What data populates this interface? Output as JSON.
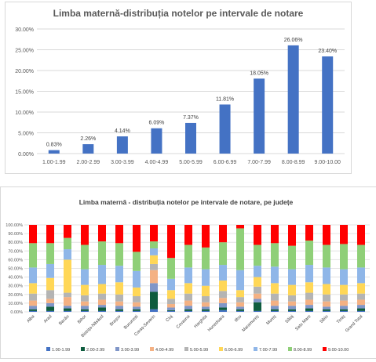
{
  "chart_data": [
    {
      "type": "bar",
      "title": "Limba maternă-distribuția notelor pe intervale de notare",
      "categories": [
        "1.00-1.99",
        "2.00-2.99",
        "3.00-3.99",
        "4.00-4.99",
        "5.00-5.99",
        "6.00-6.99",
        "7.00-7.99",
        "8.00-8.99",
        "9.00-10.00"
      ],
      "values": [
        0.83,
        2.26,
        4.14,
        6.09,
        7.37,
        11.81,
        18.05,
        26.06,
        23.4
      ],
      "data_labels": [
        "0.83%",
        "2.26%",
        "4.14%",
        "6.09%",
        "7.37%",
        "11.81%",
        "18.05%",
        "26.06%",
        "23.40%"
      ],
      "y_ticks": [
        "0.00%",
        "5.00%",
        "10.00%",
        "15.00%",
        "20.00%",
        "25.00%",
        "30.00%"
      ],
      "ylim": [
        0,
        30
      ],
      "grid": true,
      "bar_color": "#4472c4",
      "title_color": "#595959"
    },
    {
      "type": "bar",
      "stacked": true,
      "normalized": true,
      "title": "Limba maternă - distribuția notelor pe intervale de notare, pe județe",
      "categories": [
        "Alba",
        "Arad",
        "Bacău",
        "Bihor",
        "Bistrița-Năsăud",
        "Brașov",
        "Bucuresti",
        "Caraș-Severin",
        "Cluj",
        "Covasna",
        "Harghita",
        "Hunedoara",
        "Ilfov",
        "Maramureș",
        "Mureș",
        "Sălaj",
        "Satu Mare",
        "Sibiu",
        "Timiș",
        "Grand Total"
      ],
      "y_ticks": [
        "0.00%",
        "10.00%",
        "20.00%",
        "30.00%",
        "40.00%",
        "50.00%",
        "60.00%",
        "70.00%",
        "80.00%",
        "90.00%",
        "100.00%"
      ],
      "ylim": [
        0,
        100
      ],
      "legend_position": "bottom",
      "grid": true,
      "series": [
        {
          "name": "1.00-1.99",
          "color": "#4472c4",
          "values": [
            1,
            1,
            1,
            1,
            1,
            1,
            1,
            3,
            1,
            1,
            1,
            2,
            1,
            1,
            1,
            1,
            1,
            1,
            1,
            1
          ]
        },
        {
          "name": "2.00-2.99",
          "color": "#0e5c3e",
          "values": [
            2,
            5,
            3,
            2,
            4,
            2,
            2,
            20,
            1,
            2,
            2,
            3,
            2,
            10,
            2,
            2,
            3,
            2,
            2,
            3
          ]
        },
        {
          "name": "3.00-3.99",
          "color": "#8096c8",
          "values": [
            4,
            4,
            3,
            4,
            3,
            4,
            3,
            10,
            3,
            4,
            3,
            5,
            3,
            4,
            4,
            4,
            4,
            3,
            4,
            4
          ]
        },
        {
          "name": "4.00-4.99",
          "color": "#f4b183",
          "values": [
            6,
            5,
            10,
            5,
            6,
            5,
            5,
            15,
            4,
            6,
            5,
            6,
            5,
            6,
            6,
            5,
            6,
            6,
            6,
            6
          ]
        },
        {
          "name": "5.00-5.99",
          "color": "#b4b4b4",
          "values": [
            8,
            10,
            5,
            7,
            7,
            8,
            7,
            7,
            6,
            8,
            7,
            8,
            6,
            8,
            8,
            7,
            8,
            8,
            7,
            7
          ]
        },
        {
          "name": "6.00-6.99",
          "color": "#ffd757",
          "values": [
            12,
            14,
            38,
            12,
            11,
            14,
            10,
            10,
            10,
            12,
            12,
            12,
            8,
            11,
            12,
            12,
            12,
            12,
            11,
            12
          ]
        },
        {
          "name": "7.00-7.99",
          "color": "#8fb6e8",
          "values": [
            18,
            16,
            12,
            18,
            22,
            19,
            19,
            8,
            13,
            18,
            19,
            18,
            23,
            13,
            19,
            18,
            20,
            19,
            18,
            18
          ]
        },
        {
          "name": "8.00-8.99",
          "color": "#8fcf78",
          "values": [
            28,
            24,
            13,
            28,
            27,
            26,
            22,
            8,
            24,
            26,
            25,
            26,
            48,
            24,
            27,
            27,
            28,
            26,
            29,
            26
          ]
        },
        {
          "name": "9.00-10.00",
          "color": "#ff0000",
          "values": [
            21,
            21,
            15,
            23,
            19,
            21,
            31,
            19,
            38,
            23,
            26,
            20,
            4,
            23,
            21,
            24,
            18,
            23,
            22,
            23
          ]
        }
      ]
    }
  ]
}
